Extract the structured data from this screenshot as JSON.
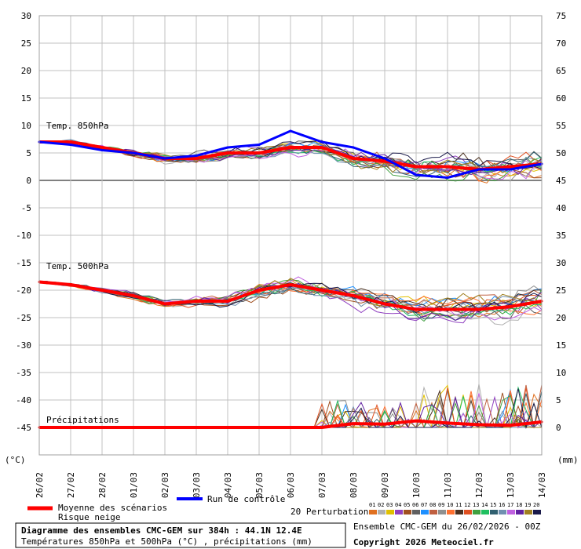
{
  "chart_data": {
    "type": "line",
    "title": "Diagramme des ensembles CMC-GEM sur 384h : 44.1N 12.4E",
    "subtitle": "Températures 850hPa et 500hPa (°C) , précipitations (mm)",
    "ensemble_label": "Ensemble CMC-GEM du 26/02/2026 - 00Z",
    "copyright": "Copyright 2026 Meteociel.fr",
    "left_unit": "(°C)",
    "right_unit": "(mm)",
    "y_left_ticks": [
      30,
      25,
      20,
      15,
      10,
      5,
      0,
      -5,
      -10,
      -15,
      -20,
      -25,
      -30,
      -35,
      -40,
      -45
    ],
    "y_right_ticks": [
      75,
      70,
      65,
      60,
      55,
      50,
      45,
      40,
      35,
      30,
      25,
      20,
      15,
      10,
      5,
      0
    ],
    "ylim_left": [
      -50,
      30
    ],
    "ylim_right": [
      -5,
      75
    ],
    "x_dates": [
      "26/02",
      "27/02",
      "28/02",
      "01/03",
      "02/03",
      "03/03",
      "04/03",
      "05/03",
      "06/03",
      "07/03",
      "08/03",
      "09/03",
      "10/03",
      "11/03",
      "12/03",
      "13/03",
      "14/03"
    ],
    "x_unit_hours_per_label": 24,
    "section_labels": {
      "t850": "Temp. 850hPa",
      "t500": "Temp. 500hPa",
      "precip": "Précipitations"
    },
    "legend": {
      "mean": "Moyenne des scénarios",
      "snow": "Risque neige",
      "control": "Run de contrôle",
      "perturbations": "20 Perturbations",
      "member_ids": [
        "01",
        "02",
        "03",
        "04",
        "05",
        "06",
        "07",
        "08",
        "09",
        "10",
        "11",
        "12",
        "13",
        "14",
        "15",
        "16",
        "17",
        "18",
        "19",
        "20"
      ],
      "member_colors": [
        "#e07020",
        "#b0b0b0",
        "#e0c000",
        "#9040c0",
        "#a05020",
        "#606060",
        "#1e90ff",
        "#c06040",
        "#909090",
        "#ff7030",
        "#4a3020",
        "#e05020",
        "#40a040",
        "#20c060",
        "#306070",
        "#7090b0",
        "#c060e0",
        "#6020a0",
        "#a08020",
        "#1a1a4a"
      ]
    },
    "colors": {
      "mean": "#ff0000",
      "control": "#0000ff",
      "grid": "#c0c0c0"
    },
    "grid": true,
    "series": [
      {
        "name": "Temp. 850hPa - Moyenne des scénarios",
        "x": [
          "26/02",
          "27/02",
          "28/02",
          "01/03",
          "02/03",
          "03/03",
          "04/03",
          "05/03",
          "06/03",
          "07/03",
          "08/03",
          "09/03",
          "10/03",
          "11/03",
          "12/03",
          "13/03",
          "14/03"
        ],
        "values": [
          7,
          7,
          6,
          5,
          4,
          4,
          5,
          5,
          6,
          6,
          4,
          3.5,
          2.5,
          2.5,
          2,
          2.5,
          3
        ]
      },
      {
        "name": "Temp. 850hPa - Run de contrôle",
        "x": [
          "26/02",
          "27/02",
          "28/02",
          "01/03",
          "02/03",
          "03/03",
          "04/03",
          "05/03",
          "06/03",
          "07/03",
          "08/03",
          "09/03",
          "10/03",
          "11/03",
          "12/03",
          "13/03",
          "14/03"
        ],
        "values": [
          7,
          6.5,
          5.5,
          5,
          4,
          4.5,
          6,
          6.5,
          9,
          7,
          6,
          4,
          1,
          0.5,
          2,
          2,
          3
        ]
      },
      {
        "name": "Temp. 500hPa - Moyenne des scénarios",
        "x": [
          "26/02",
          "27/02",
          "28/02",
          "01/03",
          "02/03",
          "03/03",
          "04/03",
          "05/03",
          "06/03",
          "07/03",
          "08/03",
          "09/03",
          "10/03",
          "11/03",
          "12/03",
          "13/03",
          "14/03"
        ],
        "values": [
          -18.5,
          -19,
          -20,
          -21,
          -22.5,
          -22,
          -22,
          -20,
          -19,
          -20,
          -21,
          -22.5,
          -23.5,
          -23.5,
          -23.5,
          -23,
          -22
        ]
      },
      {
        "name": "Précipitations - Moyenne des scénarios",
        "x": [
          "26/02",
          "27/02",
          "28/02",
          "01/03",
          "02/03",
          "03/03",
          "04/03",
          "05/03",
          "06/03",
          "07/03",
          "08/03",
          "09/03",
          "10/03",
          "11/03",
          "12/03",
          "13/03",
          "14/03"
        ],
        "values": [
          0,
          0,
          0,
          0,
          0,
          0,
          0,
          0,
          0,
          0,
          0.7,
          0.6,
          1.2,
          0.8,
          0.5,
          0.4,
          1
        ]
      }
    ]
  }
}
